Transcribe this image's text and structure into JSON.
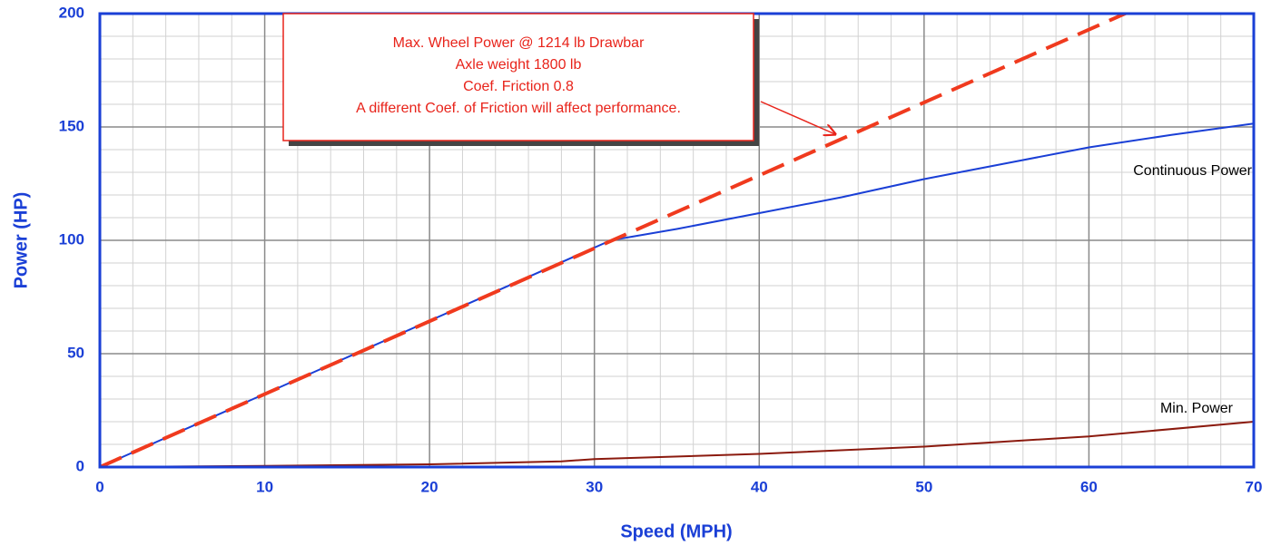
{
  "chart_data": {
    "type": "line",
    "xlabel": "Speed  (MPH)",
    "ylabel": "Power  (HP)",
    "xlim": [
      0,
      70
    ],
    "ylim": [
      0,
      200
    ],
    "xticks": [
      0,
      10,
      20,
      30,
      40,
      50,
      60,
      70
    ],
    "yticks": [
      0,
      50,
      100,
      150,
      200
    ],
    "grid": true,
    "series": [
      {
        "name": "Continuous Power",
        "color": "#1a3fd6",
        "dash": false,
        "x": [
          0,
          31,
          35,
          40,
          45,
          50,
          55,
          60,
          65,
          70
        ],
        "values": [
          0,
          100,
          105,
          112,
          119,
          127,
          134,
          141,
          146.5,
          151.5
        ]
      },
      {
        "color": "#f03a1e",
        "dash": true,
        "x": [
          0,
          62.5
        ],
        "values": [
          0,
          201
        ]
      },
      {
        "name": "Min. Power",
        "color": "#8b1a0e",
        "dash": false,
        "x": [
          0,
          10,
          20,
          28,
          30,
          40,
          50,
          60,
          70
        ],
        "values": [
          0,
          0.5,
          1.2,
          2.5,
          3.5,
          5.8,
          9,
          13.5,
          20
        ]
      }
    ],
    "annotation": [
      "Max. Wheel Power @ 1214 lb Drawbar",
      "Axle weight 1800 lb",
      "Coef. Friction 0.8",
      "A different Coef. of Friction will affect performance."
    ]
  }
}
